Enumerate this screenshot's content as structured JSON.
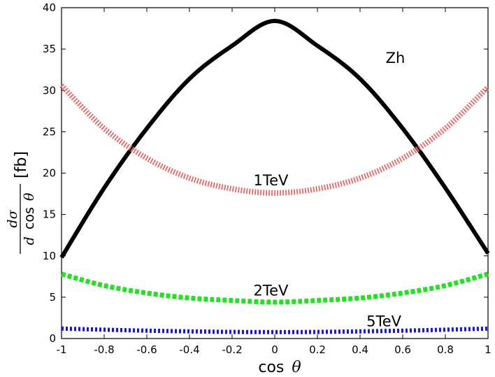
{
  "chart_data": {
    "type": "line",
    "title": "",
    "xlabel": "cos",
    "xlabel_symbol": "θ",
    "ylabel": {
      "numerator": "dσ",
      "denominator_d": "d",
      "denominator_cos": "cos",
      "denominator_theta": "θ",
      "unit": "[fb]"
    },
    "xlim": [
      -1,
      1
    ],
    "ylim": [
      0,
      40
    ],
    "x_ticks": [
      "-1",
      "-0.8",
      "-0.6",
      "-0.4",
      "-0.2",
      "0",
      "0.2",
      "0.4",
      "0.6",
      "0.8",
      "1"
    ],
    "y_ticks": [
      "0",
      "5",
      "10",
      "15",
      "20",
      "25",
      "30",
      "35",
      "40"
    ],
    "grid": false,
    "series": [
      {
        "name": "Zh",
        "label": "Zh",
        "color": "#000000",
        "style": "solid",
        "x": [
          -1,
          -0.8,
          -0.6,
          -0.4,
          -0.2,
          0,
          0.2,
          0.4,
          0.6,
          0.8,
          1
        ],
        "values": [
          9.8,
          18.2,
          25.4,
          31.4,
          35.4,
          38.4,
          35.4,
          31.4,
          25.4,
          18.2,
          10.3
        ],
        "label_x": 0.52,
        "label_y": 33.3
      },
      {
        "name": "1TeV",
        "label": "1TeV",
        "color": "#e07474",
        "style": "hatched",
        "x": [
          -1,
          -0.8,
          -0.6,
          -0.4,
          -0.2,
          0,
          0.2,
          0.4,
          0.6,
          0.8,
          1
        ],
        "values": [
          30.6,
          25.4,
          21.8,
          19.4,
          18.1,
          17.6,
          18.1,
          19.4,
          21.8,
          25.4,
          30.4
        ],
        "label_x": -0.1,
        "label_y": 18.5
      },
      {
        "name": "2TeV",
        "label": "2TeV",
        "color": "#26e026",
        "style": "dashed",
        "x": [
          -1,
          -0.8,
          -0.6,
          -0.4,
          -0.2,
          0,
          0.2,
          0.4,
          0.6,
          0.8,
          1
        ],
        "values": [
          7.8,
          6.4,
          5.5,
          4.9,
          4.6,
          4.4,
          4.6,
          4.9,
          5.5,
          6.4,
          7.8
        ],
        "label_x": -0.1,
        "label_y": 5.2
      },
      {
        "name": "5TeV",
        "label": "5TeV",
        "color": "#1a1ab0",
        "style": "dotted",
        "x": [
          -1,
          -0.6,
          -0.2,
          0,
          0.2,
          0.6,
          1
        ],
        "values": [
          1.2,
          0.95,
          0.8,
          0.78,
          0.8,
          0.95,
          1.2
        ],
        "label_x": 0.43,
        "label_y": 1.5
      }
    ]
  }
}
